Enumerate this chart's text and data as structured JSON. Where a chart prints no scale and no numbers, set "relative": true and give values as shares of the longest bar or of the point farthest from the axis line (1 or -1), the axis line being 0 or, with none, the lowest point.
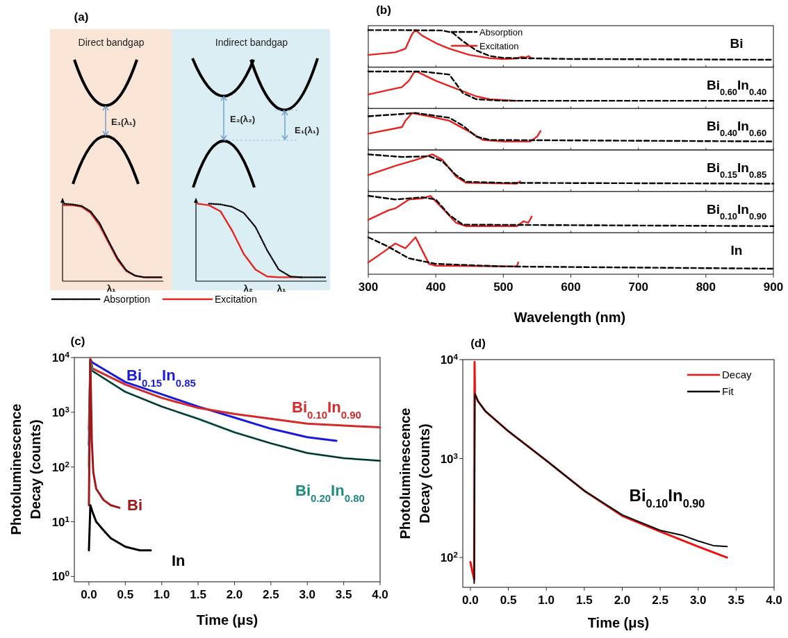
{
  "chart_data": [
    {
      "type": "other",
      "title": "(a)",
      "annotations": [
        "Direct bandgap",
        "Indirect bandgap",
        "E₁(λ₁)",
        "E₂(λ₂)",
        "E₁(λ₁)"
      ]
    },
    {
      "type": "line",
      "relative": true,
      "categories": [
        null,
        null,
        null,
        null,
        null,
        null,
        null,
        null,
        null,
        null,
        null,
        null
      ],
      "annotations": [
        "λ₁"
      ],
      "legend": "bottom",
      "series": [
        {
          "name": "Absorption",
          "color": "#000000",
          "line_style": "dotted",
          "values": [
            1,
            0.99,
            0.97,
            0.9,
            0.75,
            0.52,
            0.3,
            0.14,
            0.07,
            0.05,
            0.05,
            0.05
          ]
        },
        {
          "name": "Excitation",
          "color": "#e8231f",
          "line_style": "solid",
          "values": [
            0.98,
            0.98,
            0.96,
            0.88,
            0.72,
            0.5,
            0.28,
            0.13,
            0.07,
            0.05,
            0.05,
            0.05
          ]
        }
      ]
    },
    {
      "type": "line",
      "relative": true,
      "categories": [
        null,
        null,
        null,
        null,
        null,
        null,
        null,
        null,
        null,
        null,
        null,
        null
      ],
      "annotations": [
        "λ₂",
        "λ₁"
      ],
      "series": [
        {
          "color": "#000000",
          "line_style": "dotted",
          "values": [
            null,
            1,
            0.99,
            0.96,
            0.88,
            0.7,
            0.4,
            0.15,
            0.06,
            0.05,
            0.05,
            0.05
          ]
        },
        {
          "color": "#e8231f",
          "line_style": "solid",
          "values": [
            1,
            0.98,
            0.9,
            0.65,
            0.35,
            0.15,
            0.06,
            0.05,
            0.05,
            0.05,
            null,
            null
          ]
        }
      ]
    },
    {
      "type": "line",
      "title": "(b)",
      "relative": true,
      "xlim": [
        300,
        900
      ],
      "xticks": [
        300,
        400,
        500,
        600,
        700,
        800,
        900
      ],
      "tick_labels": false,
      "legend": "top",
      "annotations": [
        "Bi"
      ],
      "series": [
        {
          "name": "Absorption",
          "color": "#000000",
          "line_style": "dashed",
          "x": [
            300,
            350,
            410,
            425,
            440,
            460,
            480,
            500,
            600,
            900
          ],
          "values": [
            1,
            1,
            0.99,
            0.93,
            0.7,
            0.45,
            0.3,
            0.25,
            0.22,
            0.2
          ]
        },
        {
          "name": "Excitation",
          "color": "#e8231f",
          "line_style": "solid",
          "x": [
            300,
            340,
            355,
            365,
            370,
            380,
            400,
            420,
            450,
            480,
            500,
            520,
            527,
            533,
            538,
            540
          ],
          "values": [
            0.33,
            0.4,
            0.5,
            0.9,
            1,
            0.85,
            0.65,
            0.5,
            0.33,
            0.24,
            0.22,
            0.23,
            0.28,
            0.26,
            0.3,
            0.26
          ]
        }
      ]
    },
    {
      "type": "line",
      "relative": true,
      "xlim": [
        300,
        900
      ],
      "xticks": [
        300,
        400,
        500,
        600,
        700,
        800,
        900
      ],
      "tick_labels": false,
      "annotations": [
        "Bi$_{0.60}$In$_{0.40}$"
      ],
      "series": [
        {
          "color": "#000000",
          "line_style": "dashed",
          "x": [
            300,
            380,
            420,
            440,
            460,
            500,
            900
          ],
          "values": [
            1,
            1,
            0.92,
            0.42,
            0.25,
            0.21,
            0.21
          ]
        },
        {
          "color": "#e8231f",
          "line_style": "solid",
          "x": [
            300,
            350,
            360,
            368,
            372,
            400,
            430,
            460,
            480,
            520
          ],
          "values": [
            0.38,
            0.58,
            0.75,
            0.98,
            1,
            0.75,
            0.54,
            0.33,
            0.25,
            0.21
          ]
        }
      ]
    },
    {
      "type": "line",
      "relative": true,
      "xlim": [
        300,
        900
      ],
      "xticks": [
        300,
        400,
        500,
        600,
        700,
        800,
        900
      ],
      "tick_labels": false,
      "annotations": [
        "Bi$_{0.40}$In$_{0.60}$"
      ],
      "series": [
        {
          "color": "#000000",
          "line_style": "dashed",
          "x": [
            300,
            340,
            370,
            420,
            440,
            460,
            480,
            900
          ],
          "values": [
            0.91,
            0.96,
            1,
            0.87,
            0.66,
            0.36,
            0.27,
            0.23
          ]
        },
        {
          "color": "#e8231f",
          "line_style": "solid",
          "x": [
            300,
            350,
            355,
            365,
            390,
            420,
            450,
            470,
            500,
            540,
            550,
            555
          ],
          "values": [
            0.44,
            0.62,
            0.79,
            1,
            0.91,
            0.79,
            0.49,
            0.27,
            0.23,
            0.23,
            0.36,
            0.51
          ]
        }
      ]
    },
    {
      "type": "line",
      "relative": true,
      "xlim": [
        300,
        900
      ],
      "xticks": [
        300,
        400,
        500,
        600,
        700,
        800,
        900
      ],
      "tick_labels": false,
      "annotations": [
        "Bi$_{0.15}$In$_{0.85}$"
      ],
      "series": [
        {
          "color": "#000000",
          "line_style": "dashed",
          "x": [
            300,
            350,
            390,
            410,
            430,
            445,
            500,
            900
          ],
          "values": [
            1,
            0.93,
            0.95,
            0.81,
            0.44,
            0.26,
            0.23,
            0.21
          ]
        },
        {
          "color": "#e8231f",
          "line_style": "solid",
          "x": [
            300,
            340,
            370,
            395,
            410,
            430,
            445,
            520,
            525
          ],
          "values": [
            0.44,
            0.69,
            0.85,
            1,
            0.85,
            0.4,
            0.23,
            0.21,
            0.27
          ]
        }
      ]
    },
    {
      "type": "line",
      "relative": true,
      "xlim": [
        300,
        900
      ],
      "xticks": [
        300,
        400,
        500,
        600,
        700,
        800,
        900
      ],
      "tick_labels": false,
      "annotations": [
        "Bi$_{0.10}$In$_{0.90}$"
      ],
      "series": [
        {
          "color": "#000000",
          "line_style": "dashed",
          "x": [
            300,
            340,
            380,
            400,
            420,
            440,
            900
          ],
          "values": [
            1,
            0.9,
            0.96,
            0.9,
            0.48,
            0.22,
            0.18
          ]
        },
        {
          "color": "#e8231f",
          "line_style": "solid",
          "x": [
            300,
            330,
            340,
            360,
            380,
            392,
            410,
            430,
            445,
            520,
            530,
            537,
            542
          ],
          "values": [
            0.35,
            0.61,
            0.66,
            0.9,
            0.93,
            1,
            0.66,
            0.27,
            0.18,
            0.18,
            0.31,
            0.27,
            0.44
          ]
        }
      ]
    },
    {
      "type": "line",
      "relative": true,
      "xlabel": "Wavelength (nm)",
      "xlim": [
        300,
        900
      ],
      "xticks": [
        300,
        400,
        500,
        600,
        700,
        800,
        900
      ],
      "tick_labels": "x",
      "annotations": [
        "In"
      ],
      "series": [
        {
          "color": "#000000",
          "line_style": "dashed",
          "x": [
            300,
            330,
            360,
            400,
            500,
            900
          ],
          "values": [
            1,
            0.74,
            0.43,
            0.28,
            0.21,
            0.15
          ]
        },
        {
          "color": "#e8231f",
          "line_style": "solid",
          "x": [
            300,
            320,
            340,
            355,
            370,
            380,
            390,
            400,
            520,
            522
          ],
          "values": [
            0.32,
            0.57,
            0.83,
            0.7,
            1,
            0.64,
            0.28,
            0.23,
            0.21,
            0.32
          ]
        }
      ]
    },
    {
      "type": "line",
      "title": "(c)",
      "xlabel": "Time (μs)",
      "ylabel": "Photoluminescence Decay (counts)",
      "log": "y",
      "xlim": [
        -0.2,
        4.0
      ],
      "xticks": [
        {
          "value": 0,
          "label": "0.0"
        },
        {
          "value": 0.5,
          "label": "0.5"
        },
        {
          "value": 1,
          "label": "1.0"
        },
        {
          "value": 1.5,
          "label": "1.5"
        },
        {
          "value": 2,
          "label": "2.0"
        },
        {
          "value": 2.5,
          "label": "2.5"
        },
        {
          "value": 3,
          "label": "3.0"
        },
        {
          "value": 3.5,
          "label": "3.5"
        },
        {
          "value": 4,
          "label": "4.0"
        }
      ],
      "ylim": [
        0.8,
        10000
      ],
      "yticks": [
        {
          "value": 1,
          "label": "10$^{0}$"
        },
        {
          "value": 10,
          "label": "10$^{1}$"
        },
        {
          "value": 100,
          "label": "10$^{2}$"
        },
        {
          "value": 1000,
          "label": "10$^{3}$"
        },
        {
          "value": 10000,
          "label": "10$^{4}$"
        }
      ],
      "series": [
        {
          "name": "Bi$_{0.15}$In$_{0.85}$",
          "color": "#1a1adb",
          "x": [
            0,
            0.02,
            0.05,
            0.5,
            1,
            1.5,
            2,
            2.5,
            3,
            3.4
          ],
          "values": [
            250,
            9000,
            8100,
            3560,
            2130,
            1270,
            800,
            500,
            350,
            300
          ]
        },
        {
          "name": "Bi$_{0.10}$In$_{0.90}$",
          "color": "#d42a2a",
          "x": [
            0,
            0.02,
            0.05,
            0.5,
            1,
            1.5,
            2,
            2.5,
            3,
            3.5,
            4
          ],
          "values": [
            475,
            9500,
            6300,
            3220,
            1830,
            1200,
            930,
            760,
            620,
            570,
            530
          ]
        },
        {
          "name": "Bi$_{0.20}$In$_{0.80}$",
          "color": "#1f8a80",
          "x": [
            0,
            0.02,
            0.05,
            0.5,
            1,
            1.5,
            2,
            2.5,
            3,
            3.5,
            4
          ],
          "values": [
            100,
            9000,
            5670,
            2360,
            1270,
            760,
            430,
            270,
            180,
            145,
            130
          ]
        },
        {
          "name": "Bi",
          "color": "#a01818",
          "x": [
            0,
            0.02,
            0.04,
            0.06,
            0.1,
            0.2,
            0.3,
            0.42
          ],
          "values": [
            20,
            9000,
            300,
            80,
            40,
            25,
            20,
            18
          ]
        },
        {
          "name": "In",
          "color": "#000000",
          "x": [
            0,
            0.02,
            0.05,
            0.1,
            0.2,
            0.3,
            0.5,
            0.7,
            0.85
          ],
          "values": [
            3,
            20,
            15,
            10,
            7,
            5,
            3.5,
            3,
            3
          ]
        },
        {
          "color": "#000000",
          "x": [
            0.05,
            0.5,
            1,
            1.5,
            2,
            2.5,
            3,
            3.5,
            4
          ],
          "values": [
            5670,
            2360,
            1270,
            760,
            430,
            270,
            180,
            145,
            130
          ]
        }
      ]
    },
    {
      "type": "line",
      "title": "(d)",
      "xlabel": "Time (μs)",
      "ylabel": "Photoluminescence Decay (counts)",
      "log": "y",
      "legend": "top right",
      "annotations": [
        "Bi$_{0.10}$In$_{0.90}$"
      ],
      "xlim": [
        -0.1,
        4.0
      ],
      "xticks": [
        {
          "value": 0,
          "label": "0.0"
        },
        {
          "value": 0.5,
          "label": "0.5"
        },
        {
          "value": 1,
          "label": "1.0"
        },
        {
          "value": 1.5,
          "label": "1.5"
        },
        {
          "value": 2,
          "label": "2.0"
        },
        {
          "value": 2.5,
          "label": "2.5"
        },
        {
          "value": 3,
          "label": "3.0"
        },
        {
          "value": 3.5,
          "label": "3.5"
        },
        {
          "value": 4,
          "label": "4.0"
        }
      ],
      "ylim": [
        50,
        10000
      ],
      "yticks": [
        {
          "value": 100,
          "label": "10$^{2}$"
        },
        {
          "value": 1000,
          "label": "10$^{3}$"
        },
        {
          "value": 10000,
          "label": "10$^{4}$"
        }
      ],
      "series": [
        {
          "name": "Decay",
          "color": "#f01010",
          "x": [
            0,
            0.03,
            0.05,
            0.055,
            0.06,
            0.1,
            0.2,
            0.5,
            1,
            1.5,
            2,
            2.5,
            3,
            3.38
          ],
          "values": [
            90,
            70,
            60,
            9500,
            4500,
            3800,
            3000,
            1890,
            955,
            473,
            264,
            183,
            129,
            100
          ]
        },
        {
          "name": "Fit",
          "color": "#000000",
          "x": [
            0.05,
            0.06,
            0.1,
            0.2,
            0.5,
            1,
            1.5,
            2,
            2.5,
            2.8,
            3,
            3.2,
            3.38
          ],
          "values": [
            55,
            4500,
            3800,
            3000,
            1890,
            955,
            473,
            270,
            188,
            167,
            147,
            132,
            129
          ]
        }
      ]
    }
  ]
}
